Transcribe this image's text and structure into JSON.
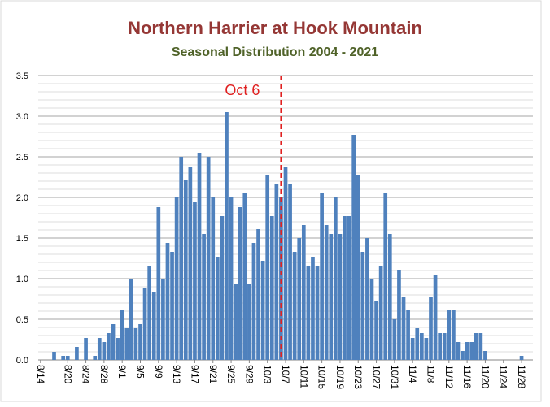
{
  "chart_data": {
    "type": "bar",
    "title": "Northern Harrier at Hook Mountain",
    "subtitle": "Seasonal Distribution 2004 - 2021",
    "categories": [
      "8/14",
      null,
      null,
      null,
      null,
      null,
      "8/20",
      null,
      null,
      null,
      "8/24",
      null,
      null,
      null,
      "8/28",
      null,
      null,
      null,
      "9/1",
      null,
      null,
      null,
      "9/5",
      null,
      null,
      null,
      "9/9",
      null,
      null,
      null,
      "9/13",
      null,
      null,
      null,
      "9/17",
      null,
      null,
      null,
      "9/21",
      null,
      null,
      null,
      "9/25",
      null,
      null,
      null,
      "9/29",
      null,
      null,
      null,
      "10/3",
      null,
      null,
      null,
      "10/7",
      null,
      null,
      null,
      "10/11",
      null,
      null,
      null,
      "10/15",
      null,
      null,
      null,
      "10/19",
      null,
      null,
      null,
      "10/23",
      null,
      null,
      null,
      "10/27",
      null,
      null,
      null,
      "10/31",
      null,
      null,
      null,
      "11/4",
      null,
      null,
      null,
      "11/8",
      null,
      null,
      null,
      "11/12",
      null,
      null,
      null,
      "11/16",
      null,
      null,
      null,
      "11/20",
      null,
      null,
      null,
      "11/24",
      null,
      null,
      null,
      "11/28",
      null,
      null
    ],
    "values": [
      0,
      0,
      0,
      0.1,
      0,
      0.05,
      0.05,
      0,
      0.16,
      0,
      0.27,
      0,
      0.05,
      0.27,
      0.22,
      0.33,
      0.44,
      0.27,
      0.61,
      0.39,
      1.0,
      0.39,
      0.44,
      0.89,
      1.16,
      0.83,
      1.88,
      1.0,
      1.44,
      1.33,
      2.0,
      2.5,
      2.22,
      2.38,
      1.94,
      2.55,
      1.55,
      2.5,
      2.0,
      1.27,
      1.77,
      3.05,
      2.0,
      0.94,
      1.88,
      2.05,
      0.94,
      1.44,
      1.61,
      1.22,
      2.27,
      1.77,
      2.16,
      2.0,
      2.38,
      2.16,
      1.33,
      1.5,
      1.66,
      1.16,
      1.27,
      1.16,
      2.05,
      1.66,
      1.55,
      2.0,
      1.55,
      1.77,
      1.77,
      2.77,
      2.27,
      1.33,
      1.5,
      1.0,
      0.72,
      1.16,
      2.05,
      1.55,
      0.5,
      1.11,
      0.77,
      0.61,
      0.27,
      0.39,
      0.33,
      0.27,
      0.77,
      1.05,
      0.33,
      0.33,
      0.61,
      0.61,
      0.22,
      0.11,
      0.22,
      0.22,
      0.33,
      0.33,
      0.11,
      0,
      0,
      0,
      0,
      0,
      0,
      0,
      0.05,
      0,
      0
    ],
    "color": "#4f81bd",
    "ylim": [
      0,
      3.5
    ],
    "yticks": [
      {
        "value": 0,
        "label": "0.0"
      },
      0.5,
      {
        "value": 1,
        "label": "1.0"
      },
      1.5,
      {
        "value": 2,
        "label": "2.0"
      },
      2.5,
      {
        "value": 3,
        "label": "3.0"
      },
      3.5
    ],
    "grid": true,
    "minor_grid": 0.1,
    "marker_line": {
      "label": "Oct 6",
      "x": 53,
      "color": "#e02020"
    }
  }
}
